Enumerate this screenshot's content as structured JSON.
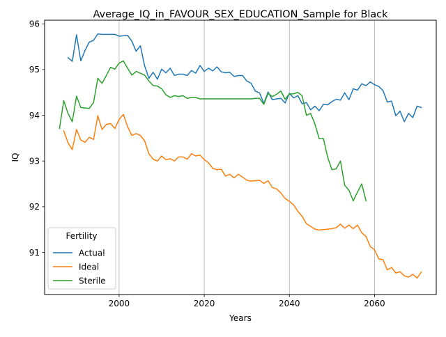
{
  "chart_data": {
    "type": "line",
    "title": "Average_IQ_in_FAVOUR_SEX_EDUCATION_Sample for Black",
    "xlabel": "Years",
    "ylabel": "IQ",
    "xlim": [
      1982.5,
      2074.5
    ],
    "ylim": [
      90.08,
      96.08
    ],
    "xticks": [
      2000,
      2020,
      2040,
      2060
    ],
    "yticks": [
      91,
      92,
      93,
      94,
      95,
      96
    ],
    "grid": "x-only",
    "legend": {
      "title": "Fertility",
      "placement": "lower-left"
    },
    "series": [
      {
        "name": "Actual",
        "color": "#1f77b4",
        "points": [
          [
            1988,
            95.26
          ],
          [
            1989,
            95.18
          ],
          [
            1990,
            95.76
          ],
          [
            1991,
            95.19
          ],
          [
            1992,
            95.42
          ],
          [
            1993,
            95.6
          ],
          [
            1994,
            95.64
          ],
          [
            1995,
            95.78
          ],
          [
            1996,
            95.77
          ],
          [
            1997,
            95.77
          ],
          [
            1998,
            95.77
          ],
          [
            1999,
            95.77
          ],
          [
            2000,
            95.73
          ],
          [
            2001,
            95.74
          ],
          [
            2002,
            95.75
          ],
          [
            2003,
            95.62
          ],
          [
            2004,
            95.4
          ],
          [
            2005,
            95.52
          ],
          [
            2006,
            95.08
          ],
          [
            2007,
            94.81
          ],
          [
            2008,
            94.94
          ],
          [
            2009,
            94.79
          ],
          [
            2010,
            95.01
          ],
          [
            2011,
            94.93
          ],
          [
            2012,
            95.03
          ],
          [
            2013,
            94.87
          ],
          [
            2014,
            94.9
          ],
          [
            2015,
            94.9
          ],
          [
            2016,
            94.87
          ],
          [
            2017,
            94.98
          ],
          [
            2018,
            94.92
          ],
          [
            2019,
            95.09
          ],
          [
            2020,
            94.96
          ],
          [
            2021,
            95.03
          ],
          [
            2022,
            94.97
          ],
          [
            2023,
            95.06
          ],
          [
            2024,
            94.95
          ],
          [
            2025,
            94.93
          ],
          [
            2026,
            94.94
          ],
          [
            2027,
            94.85
          ],
          [
            2028,
            94.87
          ],
          [
            2029,
            94.87
          ],
          [
            2030,
            94.75
          ],
          [
            2031,
            94.7
          ],
          [
            2032,
            94.53
          ],
          [
            2033,
            94.49
          ],
          [
            2034,
            94.26
          ],
          [
            2035,
            94.51
          ],
          [
            2036,
            94.34
          ],
          [
            2037,
            94.36
          ],
          [
            2038,
            94.37
          ],
          [
            2039,
            94.27
          ],
          [
            2040,
            94.48
          ],
          [
            2041,
            94.38
          ],
          [
            2042,
            94.43
          ],
          [
            2043,
            94.25
          ],
          [
            2044,
            94.28
          ],
          [
            2045,
            94.12
          ],
          [
            2046,
            94.2
          ],
          [
            2047,
            94.1
          ],
          [
            2048,
            94.24
          ],
          [
            2049,
            94.23
          ],
          [
            2050,
            94.3
          ],
          [
            2051,
            94.35
          ],
          [
            2052,
            94.33
          ],
          [
            2053,
            94.49
          ],
          [
            2054,
            94.34
          ],
          [
            2055,
            94.58
          ],
          [
            2056,
            94.55
          ],
          [
            2057,
            94.69
          ],
          [
            2058,
            94.65
          ],
          [
            2059,
            94.73
          ],
          [
            2060,
            94.67
          ],
          [
            2061,
            94.63
          ],
          [
            2062,
            94.54
          ],
          [
            2063,
            94.29
          ],
          [
            2064,
            94.31
          ],
          [
            2065,
            93.99
          ],
          [
            2066,
            94.09
          ],
          [
            2067,
            93.86
          ],
          [
            2068,
            94.04
          ],
          [
            2069,
            93.95
          ],
          [
            2070,
            94.2
          ],
          [
            2071,
            94.17
          ]
        ]
      },
      {
        "name": "Ideal",
        "color": "#ff7f0e",
        "points": [
          [
            1987,
            93.66
          ],
          [
            1988,
            93.4
          ],
          [
            1989,
            93.25
          ],
          [
            1990,
            93.69
          ],
          [
            1991,
            93.46
          ],
          [
            1992,
            93.41
          ],
          [
            1993,
            93.52
          ],
          [
            1994,
            93.47
          ],
          [
            1995,
            93.99
          ],
          [
            1996,
            93.69
          ],
          [
            1997,
            93.8
          ],
          [
            1998,
            93.82
          ],
          [
            1999,
            93.71
          ],
          [
            2000,
            93.91
          ],
          [
            2001,
            94.02
          ],
          [
            2002,
            93.75
          ],
          [
            2003,
            93.56
          ],
          [
            2004,
            93.6
          ],
          [
            2005,
            93.56
          ],
          [
            2006,
            93.44
          ],
          [
            2007,
            93.16
          ],
          [
            2008,
            93.04
          ],
          [
            2009,
            93.0
          ],
          [
            2010,
            93.11
          ],
          [
            2011,
            93.03
          ],
          [
            2012,
            93.05
          ],
          [
            2013,
            93.0
          ],
          [
            2014,
            93.09
          ],
          [
            2015,
            93.09
          ],
          [
            2016,
            93.04
          ],
          [
            2017,
            93.16
          ],
          [
            2018,
            93.11
          ],
          [
            2019,
            93.13
          ],
          [
            2020,
            93.03
          ],
          [
            2021,
            92.96
          ],
          [
            2022,
            92.84
          ],
          [
            2023,
            92.81
          ],
          [
            2024,
            92.82
          ],
          [
            2025,
            92.67
          ],
          [
            2026,
            92.71
          ],
          [
            2027,
            92.63
          ],
          [
            2028,
            92.71
          ],
          [
            2029,
            92.65
          ],
          [
            2030,
            92.58
          ],
          [
            2031,
            92.56
          ],
          [
            2032,
            92.57
          ],
          [
            2033,
            92.58
          ],
          [
            2034,
            92.51
          ],
          [
            2035,
            92.57
          ],
          [
            2036,
            92.42
          ],
          [
            2037,
            92.39
          ],
          [
            2038,
            92.3
          ],
          [
            2039,
            92.18
          ],
          [
            2040,
            92.12
          ],
          [
            2041,
            92.04
          ],
          [
            2042,
            91.9
          ],
          [
            2043,
            91.79
          ],
          [
            2044,
            91.63
          ],
          [
            2045,
            91.57
          ],
          [
            2046,
            91.51
          ],
          [
            2047,
            91.49
          ],
          [
            2048,
            91.5
          ],
          [
            2049,
            91.51
          ],
          [
            2050,
            91.52
          ],
          [
            2051,
            91.54
          ],
          [
            2052,
            91.62
          ],
          [
            2053,
            91.53
          ],
          [
            2054,
            91.6
          ],
          [
            2055,
            91.52
          ],
          [
            2056,
            91.6
          ],
          [
            2057,
            91.43
          ],
          [
            2058,
            91.35
          ],
          [
            2059,
            91.13
          ],
          [
            2060,
            91.06
          ],
          [
            2061,
            90.86
          ],
          [
            2062,
            90.84
          ],
          [
            2063,
            90.62
          ],
          [
            2064,
            90.67
          ],
          [
            2065,
            90.55
          ],
          [
            2066,
            90.58
          ],
          [
            2067,
            90.49
          ],
          [
            2068,
            90.46
          ],
          [
            2069,
            90.52
          ],
          [
            2070,
            90.44
          ],
          [
            2071,
            90.57
          ]
        ]
      },
      {
        "name": "Sterile",
        "color": "#2ca02c",
        "points": [
          [
            1986,
            93.71
          ],
          [
            1987,
            94.32
          ],
          [
            1988,
            94.04
          ],
          [
            1989,
            93.86
          ],
          [
            1990,
            94.42
          ],
          [
            1991,
            94.17
          ],
          [
            1992,
            94.16
          ],
          [
            1993,
            94.15
          ],
          [
            1994,
            94.28
          ],
          [
            1995,
            94.81
          ],
          [
            1996,
            94.7
          ],
          [
            1997,
            94.87
          ],
          [
            1998,
            95.05
          ],
          [
            1999,
            95.01
          ],
          [
            2000,
            95.14
          ],
          [
            2001,
            95.19
          ],
          [
            2002,
            95.03
          ],
          [
            2003,
            94.88
          ],
          [
            2004,
            94.96
          ],
          [
            2005,
            94.92
          ],
          [
            2006,
            94.88
          ],
          [
            2007,
            94.75
          ],
          [
            2008,
            94.65
          ],
          [
            2009,
            94.64
          ],
          [
            2010,
            94.58
          ],
          [
            2011,
            94.45
          ],
          [
            2012,
            94.39
          ],
          [
            2013,
            94.43
          ],
          [
            2014,
            94.41
          ],
          [
            2015,
            94.43
          ],
          [
            2016,
            94.37
          ],
          [
            2017,
            94.39
          ],
          [
            2018,
            94.39
          ],
          [
            2019,
            94.36
          ],
          [
            2020,
            94.36
          ],
          [
            2021,
            94.36
          ],
          [
            2022,
            94.36
          ],
          [
            2023,
            94.36
          ],
          [
            2024,
            94.36
          ],
          [
            2025,
            94.36
          ],
          [
            2026,
            94.36
          ],
          [
            2027,
            94.36
          ],
          [
            2028,
            94.36
          ],
          [
            2029,
            94.36
          ],
          [
            2030,
            94.36
          ],
          [
            2031,
            94.36
          ],
          [
            2032,
            94.37
          ],
          [
            2033,
            94.37
          ],
          [
            2034,
            94.24
          ],
          [
            2035,
            94.48
          ],
          [
            2036,
            94.41
          ],
          [
            2037,
            94.46
          ],
          [
            2038,
            94.53
          ],
          [
            2039,
            94.35
          ],
          [
            2040,
            94.47
          ],
          [
            2041,
            94.47
          ],
          [
            2042,
            94.5
          ],
          [
            2043,
            94.43
          ],
          [
            2044,
            94.0
          ],
          [
            2045,
            94.04
          ],
          [
            2046,
            93.81
          ],
          [
            2047,
            93.49
          ],
          [
            2048,
            93.49
          ],
          [
            2049,
            93.08
          ],
          [
            2050,
            92.81
          ],
          [
            2051,
            92.83
          ],
          [
            2052,
            93.0
          ],
          [
            2053,
            92.47
          ],
          [
            2054,
            92.36
          ],
          [
            2055,
            92.13
          ],
          [
            2056,
            92.32
          ],
          [
            2057,
            92.5
          ],
          [
            2058,
            92.13
          ]
        ]
      }
    ]
  }
}
